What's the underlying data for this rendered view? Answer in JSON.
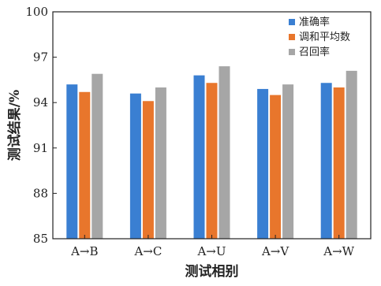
{
  "chart_data": {
    "type": "bar",
    "title": "",
    "xlabel": "测试相别",
    "ylabel": "测试结果/%",
    "categories": [
      "A→B",
      "A→C",
      "A→U",
      "A→V",
      "A→W"
    ],
    "ylim": [
      85,
      100
    ],
    "yticks": [
      "85",
      "88",
      "91",
      "94",
      "97",
      "100"
    ],
    "grid": false,
    "legend_position": "top-right",
    "series": [
      {
        "name": "准确率",
        "color": "#3a7fd2",
        "values": [
          95.2,
          94.6,
          95.8,
          94.9,
          95.3
        ]
      },
      {
        "name": "调和平均数",
        "color": "#e8762c",
        "values": [
          94.7,
          94.1,
          95.3,
          94.5,
          95.0
        ]
      },
      {
        "name": "召回率",
        "color": "#a6a6a6",
        "values": [
          95.9,
          95.0,
          96.4,
          95.2,
          96.1
        ]
      }
    ]
  }
}
